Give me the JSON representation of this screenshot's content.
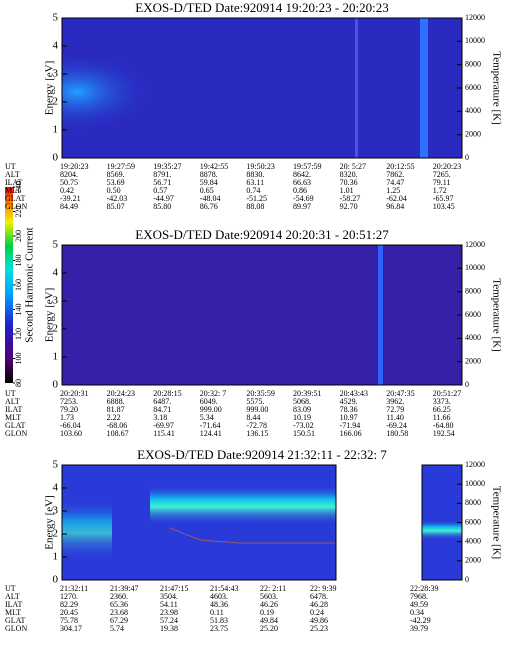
{
  "chart_data": [
    {
      "type": "spectrogram",
      "title": "EXOS-D/TED   Date:920914   19:20:23 - 20:20:23",
      "ylabel": "Energy [eV]",
      "y2label": "Temperature [K]",
      "ylim": [
        0,
        5
      ],
      "yticks": [
        0,
        1,
        2,
        3,
        4,
        5
      ],
      "y2lim": [
        0,
        12000
      ],
      "y2ticks": [
        0,
        2000,
        4000,
        6000,
        8000,
        10000,
        12000
      ],
      "rows": [
        {
          "name": "UT",
          "values": [
            "19:20:23",
            "19:27:59",
            "19:35:27",
            "19:42:55",
            "19:50:23",
            "19:57:59",
            "20: 5:27",
            "20:12:55",
            "20:20:23"
          ]
        },
        {
          "name": "ALT",
          "values": [
            "8204.",
            "8569.",
            "8791.",
            "8878.",
            "8830.",
            "8642.",
            "8320.",
            "7862.",
            "7265."
          ]
        },
        {
          "name": "ILAT",
          "values": [
            "50.75",
            "53.69",
            "56.71",
            "59.84",
            "63.11",
            "66.63",
            "70.36",
            "74.47",
            "79.11"
          ]
        },
        {
          "name": "MLT",
          "values": [
            "0.42",
            "0.50",
            "0.57",
            "0.65",
            "0.74",
            "0.86",
            "1.01",
            "1.25",
            "1.72"
          ]
        },
        {
          "name": "GLAT",
          "values": [
            "-39.21",
            "-42.03",
            "-44.97",
            "-48.04",
            "-51.25",
            "-54.69",
            "-58.27",
            "-62.04",
            "-65.97"
          ]
        },
        {
          "name": "GLON",
          "values": [
            "84.49",
            "85.07",
            "85.80",
            "86.76",
            "88.08",
            "89.97",
            "92.70",
            "96.84",
            "103.45"
          ]
        }
      ]
    },
    {
      "type": "spectrogram",
      "title": "EXOS-D/TED   Date:920914   20:20:31 - 20:51:27",
      "ylabel": "Energy [eV]",
      "y2label": "Temperature [K]",
      "ylim": [
        0,
        5
      ],
      "yticks": [
        0,
        1,
        2,
        3,
        4,
        5
      ],
      "y2lim": [
        0,
        12000
      ],
      "y2ticks": [
        0,
        2000,
        4000,
        6000,
        8000,
        10000,
        12000
      ],
      "rows": [
        {
          "name": "UT",
          "values": [
            "20:20:31",
            "20:24:23",
            "20:28:15",
            "20:32: 7",
            "20:35:59",
            "20:39:51",
            "20:43:43",
            "20:47:35",
            "20:51:27"
          ]
        },
        {
          "name": "ALT",
          "values": [
            "7253.",
            "6888.",
            "6487.",
            "6049.",
            "5575.",
            "5068.",
            "4529.",
            "3962.",
            "3373."
          ]
        },
        {
          "name": "ILAT",
          "values": [
            "79.20",
            "81.87",
            "84.71",
            "999.00",
            "999.00",
            "83.09",
            "78.36",
            "72.79",
            "66.25"
          ]
        },
        {
          "name": "MLT",
          "values": [
            "1.73",
            "2.22",
            "3.18",
            "5.34",
            "8.44",
            "10.19",
            "10.97",
            "11.40",
            "11.66"
          ]
        },
        {
          "name": "GLAT",
          "values": [
            "-66.04",
            "-68.06",
            "-69.97",
            "-71.64",
            "-72.78",
            "-73.02",
            "-71.94",
            "-69.24",
            "-64.80"
          ]
        },
        {
          "name": "GLON",
          "values": [
            "103.60",
            "108.67",
            "115.41",
            "124.41",
            "136.15",
            "150.51",
            "166.06",
            "180.58",
            "192.54"
          ]
        }
      ]
    },
    {
      "type": "spectrogram",
      "title": "EXOS-D/TED   Date:920914   21:32:11 - 22:32: 7",
      "ylabel": "Energy [eV]",
      "y2label": "Temperature [K]",
      "ylim": [
        0,
        5
      ],
      "yticks": [
        0,
        1,
        2,
        3,
        4,
        5
      ],
      "y2lim": [
        0,
        12000
      ],
      "y2ticks": [
        0,
        2000,
        4000,
        6000,
        8000,
        10000,
        12000
      ],
      "rows": [
        {
          "name": "UT",
          "values": [
            "21:32:11",
            "21:39:47",
            "21:47:15",
            "21:54:43",
            "22: 2:11",
            "22: 9:39",
            null,
            "22:28:39"
          ]
        },
        {
          "name": "ALT",
          "values": [
            "1270.",
            "2360.",
            "3504.",
            "4603.",
            "5603.",
            "6478.",
            null,
            "7968."
          ]
        },
        {
          "name": "ILAT",
          "values": [
            "82.29",
            "65.36",
            "54.11",
            "48.36",
            "46.26",
            "46.28",
            null,
            "49.59"
          ]
        },
        {
          "name": "MLT",
          "values": [
            "20.45",
            "23.68",
            "23.98",
            "0.11",
            "0.19",
            "0.24",
            null,
            "0.34"
          ]
        },
        {
          "name": "GLAT",
          "values": [
            "75.78",
            "67.29",
            "57.24",
            "51.83",
            "49.84",
            "49.86",
            null,
            "-42.29"
          ]
        },
        {
          "name": "GLON",
          "values": [
            "304.17",
            "5.74",
            "19.38",
            "23.75",
            "25.20",
            "25.23",
            null,
            "39.79"
          ]
        }
      ]
    }
  ],
  "colorbar": {
    "label": "Second Harmonic Current",
    "lim": [
      80,
      240
    ],
    "ticks": [
      80,
      100,
      120,
      140,
      160,
      180,
      200,
      220,
      240
    ]
  }
}
